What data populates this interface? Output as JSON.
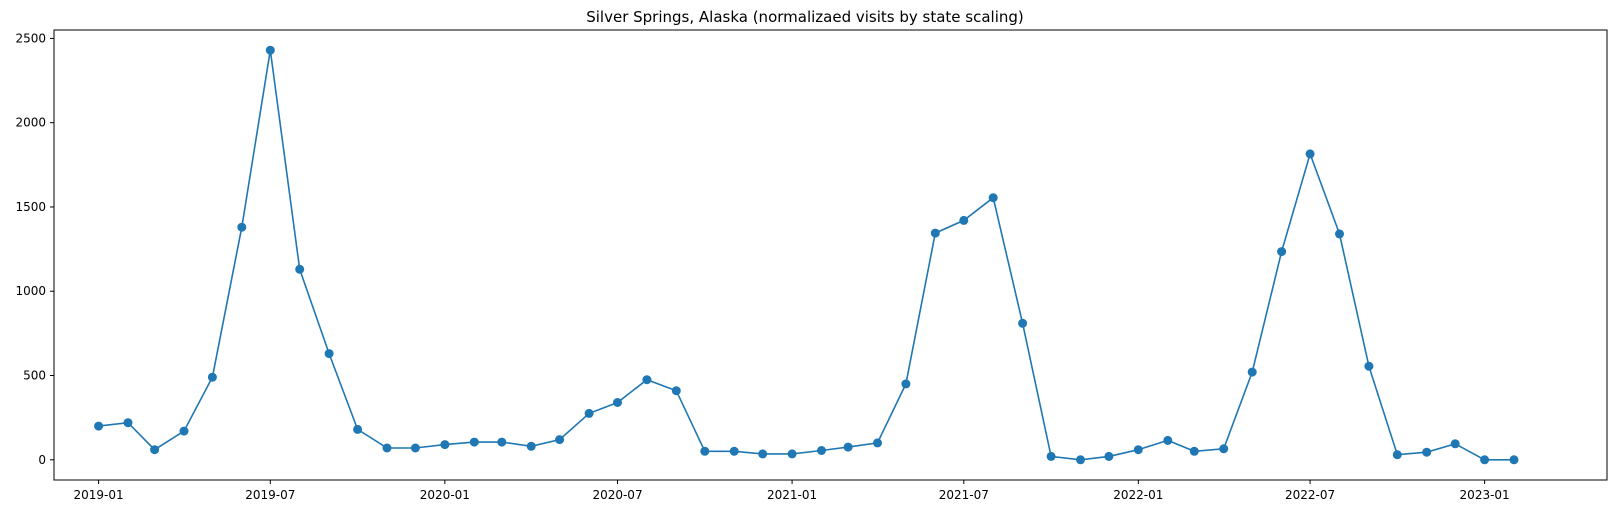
{
  "chart_data": {
    "type": "line",
    "title": "Silver Springs, Alaska (normalizaed visits by state scaling)",
    "xlabel": "",
    "ylabel": "",
    "x_tick_labels": [
      "2019-01",
      "2019-07",
      "2020-01",
      "2020-07",
      "2021-01",
      "2021-07",
      "2022-01",
      "2022-07",
      "2023-01"
    ],
    "y_tick_labels": [
      "0",
      "500",
      "1000",
      "1500",
      "2000",
      "2500"
    ],
    "y_ticks": [
      0,
      500,
      1000,
      1500,
      2000,
      2500
    ],
    "ylim": [
      -120,
      2550
    ],
    "xlim": [
      "2018-11-15",
      "2023-05-10"
    ],
    "grid": false,
    "marker": "circle",
    "series": [
      {
        "color": "#1f77b4",
        "x": [
          "2019-01",
          "2019-02",
          "2019-03",
          "2019-04",
          "2019-05",
          "2019-06",
          "2019-07",
          "2019-08",
          "2019-09",
          "2019-10",
          "2019-11",
          "2019-12",
          "2020-01",
          "2020-02",
          "2020-03",
          "2020-04",
          "2020-05",
          "2020-06",
          "2020-07",
          "2020-08",
          "2020-09",
          "2020-10",
          "2020-11",
          "2020-12",
          "2021-01",
          "2021-02",
          "2021-03",
          "2021-04",
          "2021-05",
          "2021-06",
          "2021-07",
          "2021-08",
          "2021-09",
          "2021-10",
          "2021-11",
          "2021-12",
          "2022-01",
          "2022-02",
          "2022-03",
          "2022-04",
          "2022-05",
          "2022-06",
          "2022-07",
          "2022-08",
          "2022-09",
          "2022-10",
          "2022-11",
          "2022-12",
          "2023-01",
          "2023-02"
        ],
        "values": [
          200,
          220,
          60,
          170,
          490,
          1380,
          2430,
          1130,
          630,
          180,
          70,
          70,
          90,
          105,
          105,
          80,
          120,
          275,
          340,
          475,
          410,
          50,
          50,
          35,
          35,
          55,
          75,
          100,
          450,
          1345,
          1420,
          1555,
          810,
          20,
          0,
          20,
          60,
          115,
          50,
          65,
          520,
          1235,
          1815,
          1340,
          555,
          30,
          45,
          95,
          0,
          0
        ]
      }
    ]
  }
}
